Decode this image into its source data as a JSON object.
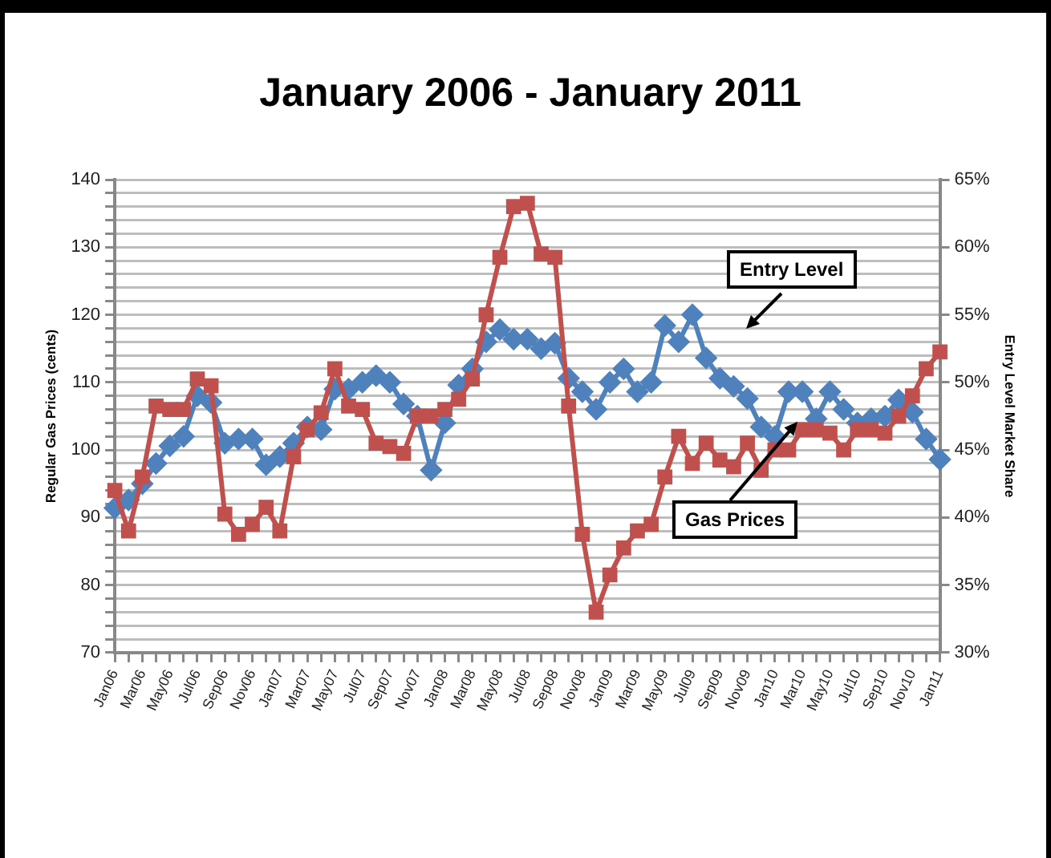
{
  "chart_data": {
    "type": "line",
    "title": "January 2006 - January 2011",
    "ylabel": "Regular Gas Prices (cents)",
    "y2label": "Entry Level Market Share",
    "categories": [
      "Jan06",
      null,
      "Mar06",
      null,
      "May06",
      null,
      "Jul06",
      null,
      "Sep06",
      null,
      "Nov06",
      null,
      "Jan07",
      null,
      "Mar07",
      null,
      "May07",
      null,
      "Jul07",
      null,
      "Sep07",
      null,
      "Nov07",
      null,
      "Jan08",
      null,
      "Mar08",
      null,
      "May08",
      null,
      "Jul08",
      null,
      "Sep08",
      null,
      "Nov08",
      null,
      "Jan09",
      null,
      "Mar09",
      null,
      "May09",
      null,
      "Jul09",
      null,
      "Sep09",
      null,
      "Nov09",
      null,
      "Jan10",
      null,
      "Mar10",
      null,
      "May10",
      null,
      "Jul10",
      null,
      "Sep10",
      null,
      "Nov10",
      null,
      "Jan11"
    ],
    "series": [
      {
        "color": "#c0504d",
        "marker": "square",
        "values": [
          94,
          88,
          96,
          106.5,
          106,
          106,
          110.5,
          109.5,
          90.5,
          87.5,
          89,
          91.5,
          88,
          99,
          103,
          105.5,
          112,
          106.5,
          106,
          101,
          100.5,
          99.5,
          105,
          105,
          106,
          107.5,
          110.5,
          120,
          128.5,
          136,
          136.5,
          129,
          128.5,
          106.5,
          87.5,
          76,
          81.5,
          85.5,
          88,
          89,
          96,
          102,
          98,
          101,
          98.5,
          97.5,
          101,
          97,
          100,
          100,
          103,
          103,
          102.5,
          100,
          103,
          103,
          102.5,
          105,
          108,
          112,
          114.5
        ]
      },
      {
        "color": "#4f81bd",
        "marker": "diamond",
        "axis": "y2",
        "values": [
          40.7,
          41.3,
          42.5,
          44,
          45.3,
          46,
          49,
          48.5,
          45.5,
          45.8,
          45.8,
          43.9,
          44.5,
          45.5,
          46.7,
          46.5,
          49.5,
          49.5,
          50,
          50.5,
          50,
          48.4,
          47.5,
          43.5,
          47,
          49.8,
          51,
          53,
          53.9,
          53.2,
          53.2,
          52.5,
          52.9,
          50.3,
          49.3,
          48,
          50,
          51,
          49.3,
          50,
          54.2,
          53,
          55,
          51.8,
          50.3,
          49.7,
          48.8,
          46.7,
          46,
          49.3,
          49.3,
          47.3,
          49.3,
          48,
          47,
          47.3,
          47.5,
          48.7,
          47.8,
          45.8,
          44.3
        ]
      }
    ],
    "ylim": [
      70,
      140
    ],
    "yticks": [
      70,
      {
        "value": 72,
        "label": null
      },
      {
        "value": 74,
        "label": null
      },
      {
        "value": 76,
        "label": null
      },
      {
        "value": 78,
        "label": null
      },
      80,
      {
        "value": 82,
        "label": null
      },
      {
        "value": 84,
        "label": null
      },
      {
        "value": 86,
        "label": null
      },
      {
        "value": 88,
        "label": null
      },
      90,
      {
        "value": 92,
        "label": null
      },
      {
        "value": 94,
        "label": null
      },
      {
        "value": 96,
        "label": null
      },
      {
        "value": 98,
        "label": null
      },
      100,
      {
        "value": 102,
        "label": null
      },
      {
        "value": 104,
        "label": null
      },
      {
        "value": 106,
        "label": null
      },
      {
        "value": 108,
        "label": null
      },
      110,
      {
        "value": 112,
        "label": null
      },
      {
        "value": 114,
        "label": null
      },
      {
        "value": 116,
        "label": null
      },
      {
        "value": 118,
        "label": null
      },
      120,
      {
        "value": 122,
        "label": null
      },
      {
        "value": 124,
        "label": null
      },
      {
        "value": 126,
        "label": null
      },
      {
        "value": 128,
        "label": null
      },
      130,
      {
        "value": 132,
        "label": null
      },
      {
        "value": 134,
        "label": null
      },
      {
        "value": 136,
        "label": null
      },
      {
        "value": 138,
        "label": null
      },
      140
    ],
    "y2lim": [
      30,
      65
    ],
    "y2ticks": [
      {
        "value": 30,
        "label": "30%"
      },
      {
        "value": 35,
        "label": "35%"
      },
      {
        "value": 40,
        "label": "40%"
      },
      {
        "value": 45,
        "label": "45%"
      },
      {
        "value": 50,
        "label": "50%"
      },
      {
        "value": 55,
        "label": "55%"
      },
      {
        "value": 60,
        "label": "60%"
      },
      {
        "value": 65,
        "label": "65%"
      }
    ],
    "grid": "y",
    "annotations": [
      "Entry Level",
      "Gas Prices"
    ]
  }
}
